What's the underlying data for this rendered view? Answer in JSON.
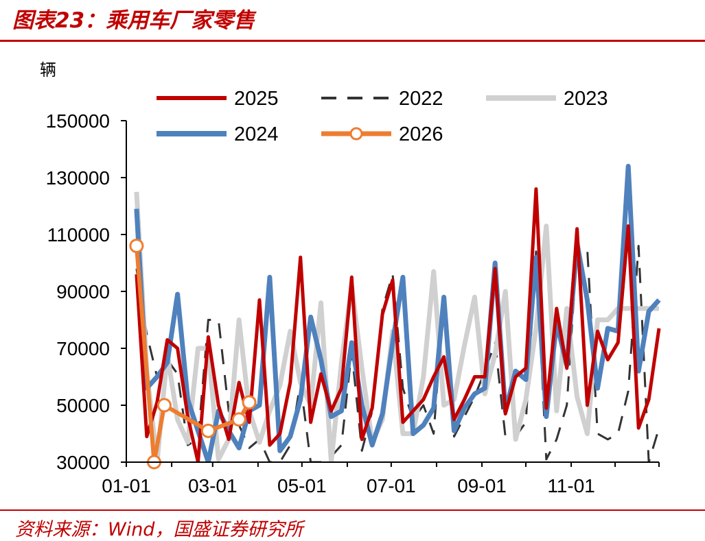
{
  "header": {
    "title": "图表23：乘用车厂家零售"
  },
  "footer": {
    "source": "资料来源：Wind，国盛证券研究所"
  },
  "colors": {
    "accent": "#c00000"
  },
  "chart_data": {
    "type": "line",
    "unit_label": "辆",
    "ylim": [
      30000,
      150000
    ],
    "yticks": [
      30000,
      50000,
      70000,
      90000,
      110000,
      130000,
      150000
    ],
    "xlim": [
      "01-01",
      "12-31"
    ],
    "xticks": [
      "01-01",
      "03-01",
      "05-01",
      "07-01",
      "09-01",
      "11-01"
    ],
    "x_unit": "day_of_year",
    "legend_position": "top",
    "series": [
      {
        "name": "2025",
        "color": "#c00000",
        "dash": "",
        "width": 5,
        "markers": false,
        "x": [
          8,
          15,
          22,
          29,
          36,
          43,
          50,
          57,
          64,
          71,
          78,
          85,
          92,
          99,
          106,
          113,
          120,
          127,
          134,
          141,
          148,
          155,
          162,
          169,
          176,
          183,
          190,
          197,
          204,
          211,
          218,
          225,
          232,
          239,
          246,
          253,
          260,
          267,
          274,
          281,
          288,
          295,
          302,
          309,
          316,
          323,
          330,
          337,
          344,
          351,
          358,
          365
        ],
        "y": [
          96000,
          39000,
          51000,
          73000,
          70000,
          46000,
          30000,
          74000,
          50000,
          38000,
          58000,
          44000,
          87000,
          36000,
          40000,
          58000,
          102000,
          44000,
          61000,
          48000,
          56000,
          95000,
          38000,
          49000,
          82000,
          94000,
          44000,
          48000,
          52000,
          60000,
          67000,
          45000,
          52000,
          60000,
          60000,
          98000,
          47000,
          60000,
          63000,
          126000,
          49000,
          84000,
          63000,
          112000,
          50000,
          76000,
          66000,
          72000,
          113000,
          42000,
          52000,
          77000
        ]
      },
      {
        "name": "2022",
        "color": "#333333",
        "dash": "22,16",
        "width": 3,
        "markers": false,
        "x": [
          8,
          15,
          22,
          29,
          36,
          43,
          50,
          57,
          64,
          71,
          78,
          85,
          92,
          99,
          106,
          113,
          120,
          127,
          134,
          141,
          148,
          155,
          162,
          169,
          176,
          183,
          190,
          197,
          204,
          211,
          218,
          225,
          232,
          239,
          246,
          253,
          260,
          267,
          274,
          281,
          288,
          295,
          302,
          309,
          316,
          323,
          330,
          337,
          344,
          351,
          358,
          365
        ],
        "y": [
          98000,
          75000,
          60000,
          66000,
          61000,
          36000,
          38000,
          80000,
          80000,
          48000,
          43000,
          35000,
          38000,
          30000,
          30000,
          36000,
          58000,
          30000,
          30000,
          32000,
          36000,
          69000,
          34000,
          48000,
          84000,
          96000,
          56000,
          45000,
          50000,
          40000,
          88000,
          39000,
          46000,
          53000,
          62000,
          72000,
          39000,
          39000,
          44000,
          104000,
          31000,
          38000,
          50000,
          105000,
          105000,
          40000,
          38000,
          40000,
          55000,
          106000,
          30000,
          42000
        ]
      },
      {
        "name": "2023",
        "color": "#d0d0d0",
        "dash": "",
        "width": 7,
        "markers": false,
        "x": [
          8,
          15,
          22,
          29,
          36,
          43,
          50,
          57,
          64,
          71,
          78,
          85,
          92,
          99,
          106,
          113,
          120,
          127,
          134,
          141,
          148,
          155,
          162,
          169,
          176,
          183,
          190,
          197,
          204,
          211,
          218,
          225,
          232,
          239,
          246,
          253,
          260,
          267,
          274,
          281,
          288,
          295,
          302,
          309,
          316,
          323,
          330,
          337,
          344,
          351,
          358,
          365
        ],
        "y": [
          125000,
          62000,
          30000,
          68000,
          45000,
          37000,
          70000,
          70000,
          31000,
          38000,
          80000,
          48000,
          37000,
          48000,
          57000,
          76000,
          58000,
          50000,
          86000,
          30000,
          65000,
          92000,
          63000,
          37000,
          45000,
          76000,
          40000,
          40000,
          60000,
          97000,
          50000,
          52000,
          71000,
          88000,
          54000,
          68000,
          90000,
          38000,
          52000,
          77000,
          113000,
          48000,
          84000,
          53000,
          40000,
          80000,
          80000,
          84000,
          84000,
          84000,
          84000,
          84000
        ]
      },
      {
        "name": "2024",
        "color": "#4f81bd",
        "dash": "",
        "width": 7,
        "markers": false,
        "x": [
          8,
          15,
          22,
          29,
          36,
          43,
          50,
          57,
          64,
          71,
          78,
          85,
          92,
          99,
          106,
          113,
          120,
          127,
          134,
          141,
          148,
          155,
          162,
          169,
          176,
          183,
          190,
          197,
          204,
          211,
          218,
          225,
          232,
          239,
          246,
          253,
          260,
          267,
          274,
          281,
          288,
          295,
          302,
          309,
          316,
          323,
          330,
          337,
          344,
          351,
          358,
          365
        ],
        "y": [
          119000,
          56000,
          60000,
          65000,
          89000,
          52000,
          41000,
          30000,
          48000,
          41000,
          35000,
          48000,
          50000,
          95000,
          34000,
          39000,
          52000,
          81000,
          66000,
          46000,
          48000,
          72000,
          50000,
          36000,
          47000,
          72000,
          95000,
          40000,
          43000,
          49000,
          88000,
          41000,
          49000,
          54000,
          56000,
          100000,
          48000,
          62000,
          59000,
          102000,
          46000,
          79000,
          64000,
          107000,
          87000,
          56000,
          77000,
          76000,
          134000,
          62000,
          83000,
          87000
        ]
      },
      {
        "name": "2026",
        "color": "#ed7d31",
        "dash": "",
        "width": 6,
        "markers": true,
        "x": [
          8,
          20,
          27,
          57,
          78,
          85
        ],
        "y": [
          106000,
          30000,
          50000,
          41000,
          45000,
          51000
        ]
      }
    ]
  }
}
